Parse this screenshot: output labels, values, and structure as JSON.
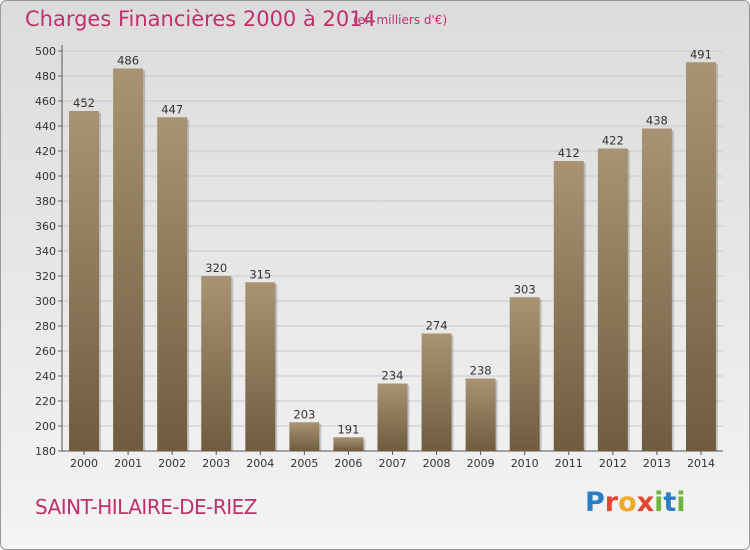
{
  "header": {
    "title": "Charges Financières 2000 à 2014",
    "subtitle": "(en milliers d'€)"
  },
  "footer": {
    "commune": "SAINT-HILAIRE-DE-RIEZ",
    "logo_letters": [
      "P",
      "r",
      "o",
      "x",
      "i",
      "t",
      "i"
    ],
    "logo_colors": [
      "#2a7fc4",
      "#e2462f",
      "#f0a92b",
      "#e2462f",
      "#6fb43f",
      "#2a7fc4",
      "#6fb43f"
    ]
  },
  "colors": {
    "title": "#c0306b",
    "bar_top": "#a89473",
    "bar_bottom": "#6f5c3f"
  },
  "chart_data": {
    "type": "bar",
    "categories": [
      "2000",
      "2001",
      "2002",
      "2003",
      "2004",
      "2005",
      "2006",
      "2007",
      "2008",
      "2009",
      "2010",
      "2011",
      "2012",
      "2013",
      "2014"
    ],
    "values": [
      452,
      486,
      447,
      320,
      315,
      203,
      191,
      234,
      274,
      238,
      303,
      412,
      422,
      438,
      491
    ],
    "ylim": [
      180,
      500
    ],
    "yticks": [
      180,
      200,
      220,
      240,
      260,
      280,
      300,
      320,
      340,
      360,
      380,
      400,
      420,
      440,
      460,
      480,
      500
    ],
    "grid": true
  }
}
